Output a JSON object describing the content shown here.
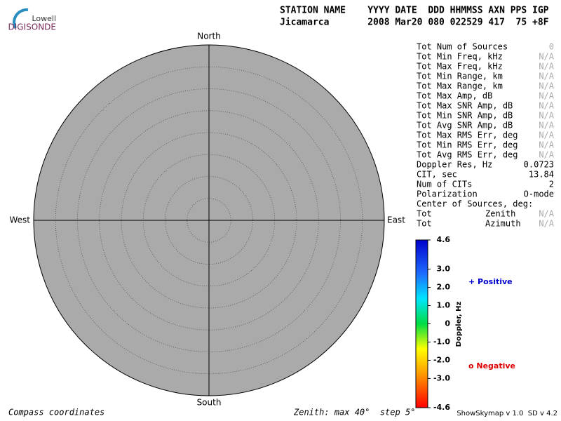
{
  "logo": {
    "top": "Lowell",
    "bottom": "DIGISONDE"
  },
  "header": {
    "line1": "STATION NAME    YYYY DATE  DDD HHMMSS AXN PPS IGP",
    "line2": "Jicamarca       2008 Mar20 080 022529 417  75 +8F"
  },
  "compass": {
    "north": "North",
    "south": "South",
    "east": "East",
    "west": "West"
  },
  "stats": [
    {
      "label": "Tot Num of Sources",
      "value": "0",
      "color": "#aaaaaa"
    },
    {
      "label": "Tot Min Freq, kHz",
      "value": "N/A",
      "color": "#aaaaaa"
    },
    {
      "label": "Tot Max Freq, kHz",
      "value": "N/A",
      "color": "#aaaaaa"
    },
    {
      "label": "Tot Min Range, km",
      "value": "N/A",
      "color": "#aaaaaa"
    },
    {
      "label": "Tot Max Range, km",
      "value": "N/A",
      "color": "#aaaaaa"
    },
    {
      "label": "Tot Max Amp, dB",
      "value": "N/A",
      "color": "#aaaaaa"
    },
    {
      "label": "Tot Max SNR Amp, dB",
      "value": "N/A",
      "color": "#aaaaaa"
    },
    {
      "label": "Tot Min SNR Amp, dB",
      "value": "N/A",
      "color": "#aaaaaa"
    },
    {
      "label": "Tot Avg SNR Amp, dB",
      "value": "N/A",
      "color": "#aaaaaa"
    },
    {
      "label": "Tot Max RMS Err, deg",
      "value": "N/A",
      "color": "#aaaaaa"
    },
    {
      "label": "Tot Min RMS Err, deg",
      "value": "N/A",
      "color": "#aaaaaa"
    },
    {
      "label": "Tot Avg RMS Err, deg",
      "value": "N/A",
      "color": "#aaaaaa"
    },
    {
      "label": "Doppler Res, Hz",
      "value": "0.0723",
      "color": "#000000"
    },
    {
      "label": "CIT, sec",
      "value": "13.84",
      "color": "#000000"
    },
    {
      "label": "Num of CITs",
      "value": "2",
      "color": "#000000"
    },
    {
      "label": "Polarization",
      "value": "O-mode",
      "color": "#000000"
    },
    {
      "label": "Center of Sources, deg:"
    },
    {
      "label": "Tot",
      "sublabel": "Zenith",
      "value": "N/A",
      "color": "#aaaaaa"
    },
    {
      "label": "Tot",
      "sublabel": "Azimuth",
      "value": "N/A",
      "color": "#aaaaaa"
    }
  ],
  "colorbar": {
    "title": "Doppler, Hz",
    "range": [
      -4.6,
      4.6
    ],
    "ticks": [
      {
        "value": 4.6,
        "label": "4.6"
      },
      {
        "value": 3,
        "label": "3.0"
      },
      {
        "value": 2,
        "label": "2.0"
      },
      {
        "value": 1,
        "label": "1.0"
      },
      0,
      {
        "value": -1,
        "label": "-1.0"
      },
      {
        "value": -2,
        "label": "-2.0"
      },
      {
        "value": -3,
        "label": "-3.0"
      },
      {
        "value": -4.6,
        "label": "-4.6"
      }
    ],
    "positive": "+ Positive",
    "negative": "o Negative"
  },
  "footer": {
    "left": "Compass coordinates",
    "center": "Zenith: max 40°  step 5°",
    "right": "ShowSkymap v 1.0  SD v 4.2"
  }
}
